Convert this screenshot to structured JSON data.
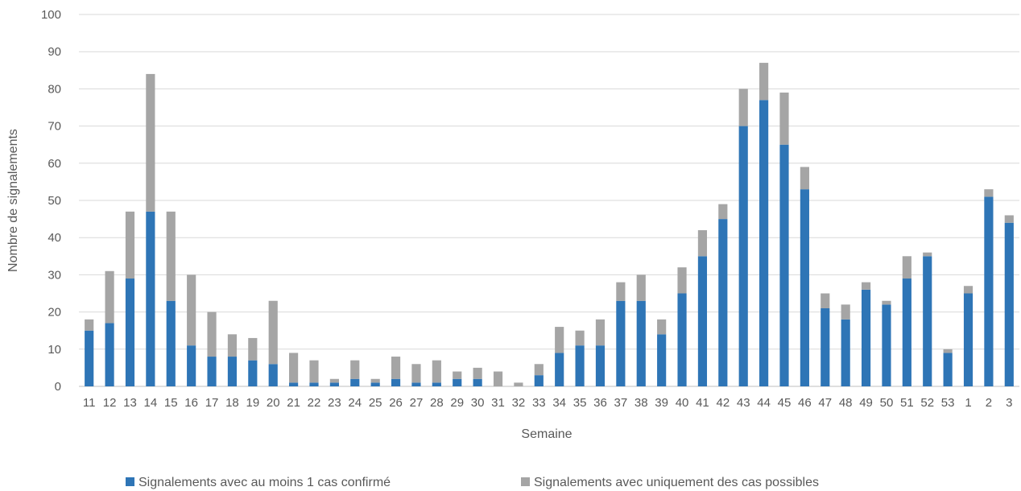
{
  "colors": {
    "confirmed": "#2E75B6",
    "possible": "#A5A5A5",
    "grid": "#D9D9D9",
    "text": "#595959"
  },
  "chart_data": {
    "type": "bar",
    "stacked": true,
    "title": "",
    "xlabel": "Semaine",
    "ylabel": "Nombre de signalements",
    "ylim": [
      0,
      100
    ],
    "yticks": [
      0,
      10,
      20,
      30,
      40,
      50,
      60,
      70,
      80,
      90,
      100
    ],
    "grid": true,
    "legend_position": "bottom",
    "categories": [
      "11",
      "12",
      "13",
      "14",
      "15",
      "16",
      "17",
      "18",
      "19",
      "20",
      "21",
      "22",
      "23",
      "24",
      "25",
      "26",
      "27",
      "28",
      "29",
      "30",
      "31",
      "32",
      "33",
      "34",
      "35",
      "36",
      "37",
      "38",
      "39",
      "40",
      "41",
      "42",
      "43",
      "44",
      "45",
      "46",
      "47",
      "48",
      "49",
      "50",
      "51",
      "52",
      "53",
      "1",
      "2",
      "3"
    ],
    "series": [
      {
        "name": "Signalements avec au moins 1 cas confirmé",
        "color": "#2E75B6",
        "values": [
          15,
          17,
          29,
          47,
          23,
          11,
          8,
          8,
          7,
          6,
          1,
          1,
          1,
          2,
          1,
          2,
          1,
          1,
          2,
          2,
          0,
          0,
          3,
          9,
          11,
          11,
          23,
          23,
          14,
          25,
          35,
          45,
          70,
          77,
          65,
          53,
          21,
          18,
          26,
          22,
          29,
          35,
          9,
          25,
          51,
          44
        ]
      },
      {
        "name": "Signalements avec uniquement des cas possibles",
        "color": "#A5A5A5",
        "values": [
          3,
          14,
          18,
          37,
          24,
          19,
          12,
          6,
          6,
          17,
          8,
          6,
          1,
          5,
          1,
          6,
          5,
          6,
          2,
          3,
          4,
          1,
          3,
          7,
          4,
          7,
          5,
          7,
          4,
          7,
          7,
          4,
          10,
          10,
          14,
          6,
          4,
          4,
          2,
          1,
          6,
          1,
          1,
          2,
          2,
          2
        ]
      }
    ]
  }
}
